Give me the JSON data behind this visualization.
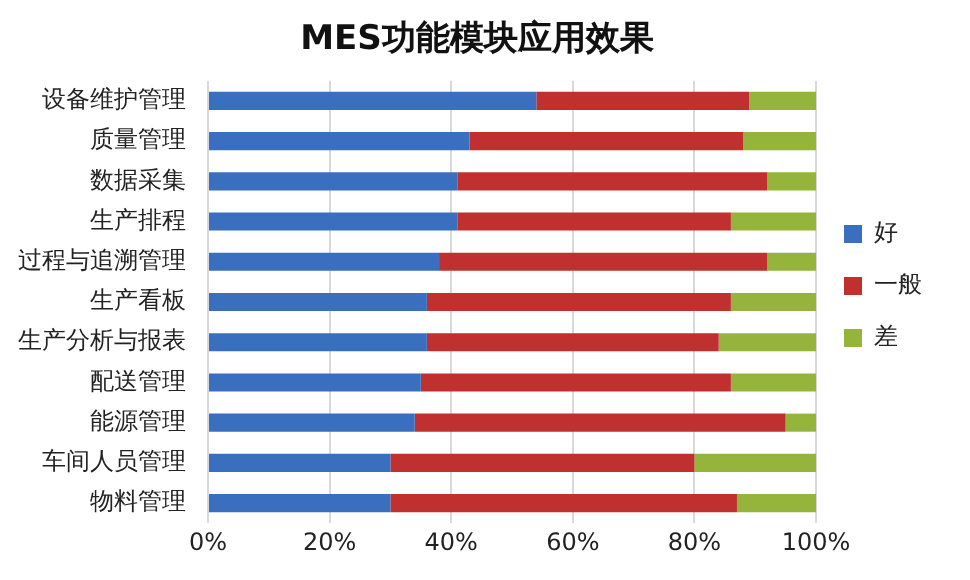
{
  "chart_data": {
    "type": "bar",
    "orientation": "horizontal",
    "stacked": true,
    "title": "MES功能模块应用效果",
    "categories": [
      "设备维护管理",
      "质量管理",
      "数据采集",
      "生产排程",
      "过程与追溯管理",
      "生产看板",
      "生产分析与报表",
      "配送管理",
      "能源管理",
      "车间人员管理",
      "物料管理"
    ],
    "series": [
      {
        "name": "好",
        "color": "#3a6fbf",
        "values": [
          54,
          43,
          41,
          41,
          38,
          36,
          36,
          35,
          34,
          30,
          30
        ]
      },
      {
        "name": "一般",
        "color": "#c0302f",
        "values": [
          35,
          45,
          51,
          45,
          54,
          50,
          48,
          51,
          61,
          50,
          57
        ]
      },
      {
        "name": "差",
        "color": "#94b43c",
        "values": [
          11,
          12,
          8,
          14,
          8,
          14,
          16,
          14,
          5,
          20,
          13
        ]
      }
    ],
    "xlim": [
      0,
      100
    ],
    "xticks": [
      {
        "value": 0,
        "label": "0%"
      },
      {
        "value": 20,
        "label": "20%"
      },
      {
        "value": 40,
        "label": "40%"
      },
      {
        "value": 60,
        "label": "60%"
      },
      {
        "value": 80,
        "label": "80%"
      },
      {
        "value": 100,
        "label": "100%"
      }
    ],
    "grid": "x",
    "legend": "right"
  }
}
